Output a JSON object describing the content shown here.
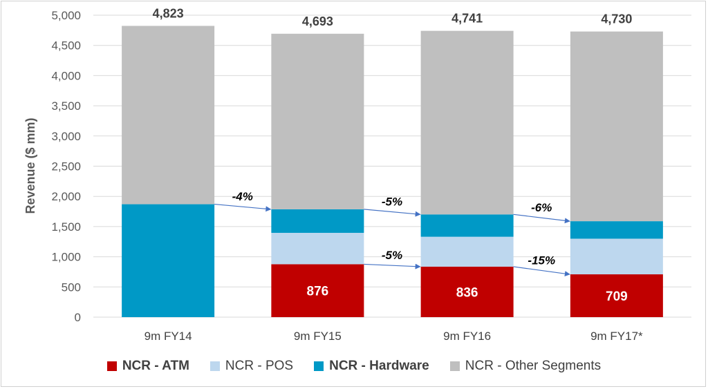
{
  "chart_data": {
    "type": "bar",
    "stacked": true,
    "ylabel": "Revenue ($ mm)",
    "xlabel": "",
    "ylim": [
      0,
      5000
    ],
    "yticks": [
      0,
      500,
      1000,
      1500,
      2000,
      2500,
      3000,
      3500,
      4000,
      4500,
      5000
    ],
    "ytick_labels": [
      "0",
      "500",
      "1,000",
      "1,500",
      "2,000",
      "2,500",
      "3,000",
      "3,500",
      "4,000",
      "4,500",
      "5,000"
    ],
    "grid": true,
    "legend_position": "bottom",
    "categories": [
      "9m FY14",
      "9m FY15",
      "9m FY16",
      "9m FY17*"
    ],
    "totals": [
      "4,823",
      "4,693",
      "4,741",
      "4,730"
    ],
    "series": [
      {
        "name": "NCR - ATM",
        "color": "#c00000",
        "bold": true,
        "values": [
          0,
          876,
          836,
          709
        ],
        "labels": [
          "",
          "876",
          "836",
          "709"
        ]
      },
      {
        "name": "NCR - POS",
        "color": "#bdd7ee",
        "bold": false,
        "values": [
          0,
          520,
          495,
          590
        ]
      },
      {
        "name": "NCR - Hardware",
        "color": "#0099c6",
        "bold": true,
        "values": [
          1870,
          390,
          370,
          290
        ]
      },
      {
        "name": "NCR - Other Segments",
        "color": "#bfbfbf",
        "bold": false,
        "values": [
          2953,
          2907,
          3040,
          3141
        ]
      }
    ],
    "annotations": [
      {
        "text": "-4%",
        "from": 0,
        "to": 1,
        "y_from": 1870,
        "y_to": 1786
      },
      {
        "text": "-5%",
        "from": 1,
        "to": 2,
        "y_from": 1786,
        "y_to": 1701
      },
      {
        "text": "-6%",
        "from": 2,
        "to": 3,
        "y_from": 1701,
        "y_to": 1589
      },
      {
        "text": "-5%",
        "from": 1,
        "to": 2,
        "y_from": 876,
        "y_to": 836
      },
      {
        "text": "-15%",
        "from": 2,
        "to": 3,
        "y_from": 836,
        "y_to": 709
      }
    ],
    "arrow_color": "#4472c4"
  }
}
